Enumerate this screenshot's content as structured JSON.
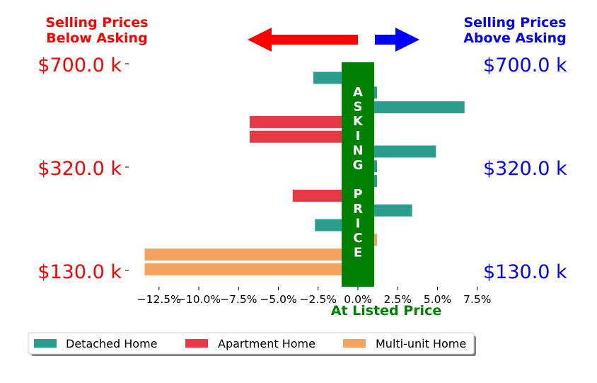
{
  "header": {
    "below_line1": "Selling Prices",
    "below_line2": "Below Asking",
    "above_line1": "Selling Prices",
    "above_line2": "Above Asking",
    "below_color": "#ff0000",
    "above_color": "#0000ff",
    "left_arrow_icon": "left-arrow-icon",
    "right_arrow_icon": "right-arrow-icon"
  },
  "price_labels": [
    "$700.0 k",
    "$320.0 k",
    "$130.0 k"
  ],
  "center_band": {
    "letters": [
      "A",
      "S",
      "K",
      "I",
      "N",
      "G",
      "",
      "P",
      "R",
      "I",
      "C",
      "E"
    ],
    "color": "#008000"
  },
  "x_axis_label": "At Listed Price",
  "chart_data": {
    "type": "bar",
    "orientation": "horizontal",
    "xlim": [
      -15.0,
      9.0
    ],
    "x_ticks": [
      -12.5,
      -10.0,
      -7.5,
      -5.0,
      -2.5,
      0.0,
      2.5,
      5.0,
      7.5
    ],
    "x_tick_labels": [
      "−12.5%",
      "−10.0%",
      "−7.5%",
      "−5.0%",
      "−2.5%",
      "0.0%",
      "2.5%",
      "5.0%",
      "7.5%"
    ],
    "y_labels": [
      "$700.0 k",
      "$320.0 k",
      "$130.0 k"
    ],
    "series": [
      {
        "name": "Detached Home",
        "color": "#2a9d8f"
      },
      {
        "name": "Apartment Home",
        "color": "#e63946"
      },
      {
        "name": "Multi-unit Home",
        "color": "#f4a261"
      }
    ],
    "bars": [
      {
        "series": "Detached Home",
        "value": -2.8
      },
      {
        "series": "Detached Home",
        "value": 1.2
      },
      {
        "series": "Detached Home",
        "value": 6.7
      },
      {
        "series": "Apartment Home",
        "value": -6.8
      },
      {
        "series": "Apartment Home",
        "value": -6.8
      },
      {
        "series": "Detached Home",
        "value": 4.9
      },
      {
        "series": "Detached Home",
        "value": 1.2
      },
      {
        "series": "Detached Home",
        "value": 1.2
      },
      {
        "series": "Apartment Home",
        "value": -4.1
      },
      {
        "series": "Detached Home",
        "value": 3.4
      },
      {
        "series": "Detached Home",
        "value": -2.7
      },
      {
        "series": "Multi-unit Home",
        "value": 1.2
      },
      {
        "series": "Multi-unit Home",
        "value": -13.4
      },
      {
        "series": "Multi-unit Home",
        "value": -13.4
      }
    ],
    "legend": {
      "position": "bottom",
      "entries": [
        "Detached Home",
        "Apartment Home",
        "Multi-unit Home"
      ]
    }
  }
}
